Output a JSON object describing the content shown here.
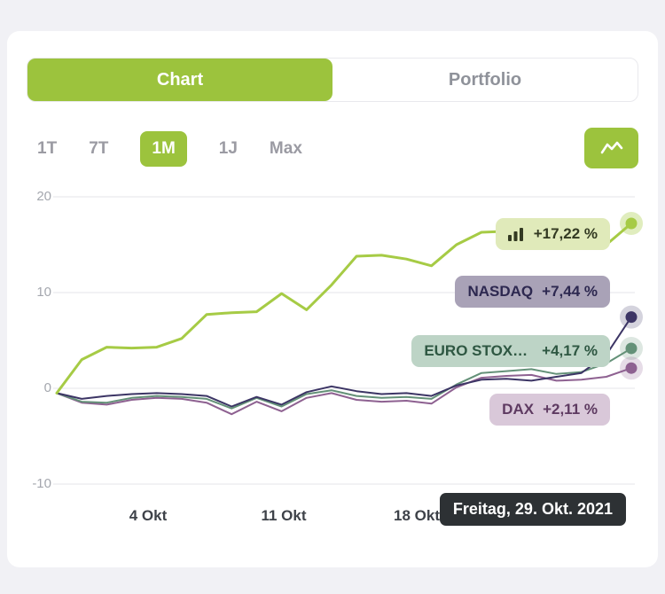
{
  "tabs": [
    {
      "label": "Chart",
      "active": true
    },
    {
      "label": "Portfolio",
      "active": false
    }
  ],
  "ranges": [
    {
      "label": "1T",
      "active": false
    },
    {
      "label": "7T",
      "active": false
    },
    {
      "label": "1M",
      "active": true
    },
    {
      "label": "1J",
      "active": false
    },
    {
      "label": "Max",
      "active": false
    }
  ],
  "toolbar": {
    "chart_style_icon": "activity-icon"
  },
  "colors": {
    "accent": "#9cc33d",
    "page-bg": "#f1f1f5",
    "card-bg": "#ffffff",
    "grid": "#e5e5ea",
    "axis-label": "#a4a7ae",
    "xaxis-label": "#3e4249",
    "range-label": "#9b9ba3",
    "tab-inactive": "#8f929a",
    "seg-border": "#e9e9ed",
    "tooltip-bg": "#2d3134",
    "tooltip-text": "#ffffff"
  },
  "chart_data": {
    "type": "line",
    "unit": "%",
    "title": "",
    "grid": true,
    "legend_position": "inline-right",
    "tooltip": "Freitag, 29. Okt. 2021",
    "x_axis": {
      "ticks": [
        "4 Okt",
        "11 Okt",
        "18 Okt"
      ]
    },
    "y_axis": {
      "ticks": [
        20,
        10,
        0,
        -10
      ],
      "range": [
        -12,
        21
      ]
    },
    "series": [
      {
        "id": "portfolio",
        "name": "",
        "icon": "bar-chart-icon",
        "change_label": "+17,22 %",
        "change_pct": 17.22,
        "color": "#a6cb45",
        "halo": "rgba(166,203,69,0.35)",
        "badge_bg": "#e0eaba",
        "badge_text": "#333a22",
        "line_width": 3,
        "values": [
          -0.5,
          3.0,
          4.3,
          4.2,
          4.3,
          5.2,
          7.7,
          7.9,
          8.0,
          9.9,
          8.2,
          10.8,
          13.8,
          13.9,
          13.5,
          12.8,
          15.0,
          16.3,
          16.4,
          16.2,
          16.4,
          16.0,
          15.0,
          17.22
        ]
      },
      {
        "id": "nasdaq",
        "name": "NASDAQ",
        "change_label": "+7,44 %",
        "change_pct": 7.44,
        "color": "#3c3565",
        "halo": "rgba(60,53,101,0.22)",
        "badge_bg": "#a9a2b7",
        "badge_text": "#2d2850",
        "line_width": 2,
        "values": [
          -0.5,
          -1.1,
          -0.8,
          -0.6,
          -0.5,
          -0.6,
          -0.8,
          -1.9,
          -0.9,
          -1.7,
          -0.4,
          0.2,
          -0.3,
          -0.6,
          -0.5,
          -0.8,
          0.3,
          0.9,
          1.0,
          0.8,
          1.2,
          1.6,
          3.5,
          7.44
        ]
      },
      {
        "id": "eurostoxx",
        "name": "EURO STOX…",
        "change_label": "+4,17 %",
        "change_pct": 4.17,
        "color": "#649178",
        "halo": "rgba(100,145,120,0.22)",
        "badge_bg": "#bdd4c6",
        "badge_text": "#2e5742",
        "line_width": 2,
        "values": [
          -0.5,
          -1.4,
          -1.5,
          -1.0,
          -0.8,
          -0.9,
          -1.1,
          -2.1,
          -1.0,
          -1.9,
          -0.6,
          -0.2,
          -0.8,
          -1.0,
          -0.9,
          -1.1,
          0.4,
          1.6,
          1.8,
          2.0,
          1.5,
          1.7,
          2.6,
          4.17
        ]
      },
      {
        "id": "dax",
        "name": "DAX",
        "change_label": "+2,11 %",
        "change_pct": 2.11,
        "color": "#8e6191",
        "halo": "rgba(142,97,145,0.22)",
        "badge_bg": "#d9c8d9",
        "badge_text": "#5e3a61",
        "line_width": 2,
        "values": [
          -0.5,
          -1.5,
          -1.7,
          -1.2,
          -1.0,
          -1.1,
          -1.5,
          -2.7,
          -1.4,
          -2.4,
          -1.0,
          -0.5,
          -1.2,
          -1.4,
          -1.3,
          -1.6,
          0.1,
          1.1,
          1.3,
          1.4,
          0.8,
          0.9,
          1.2,
          2.11
        ]
      }
    ]
  }
}
